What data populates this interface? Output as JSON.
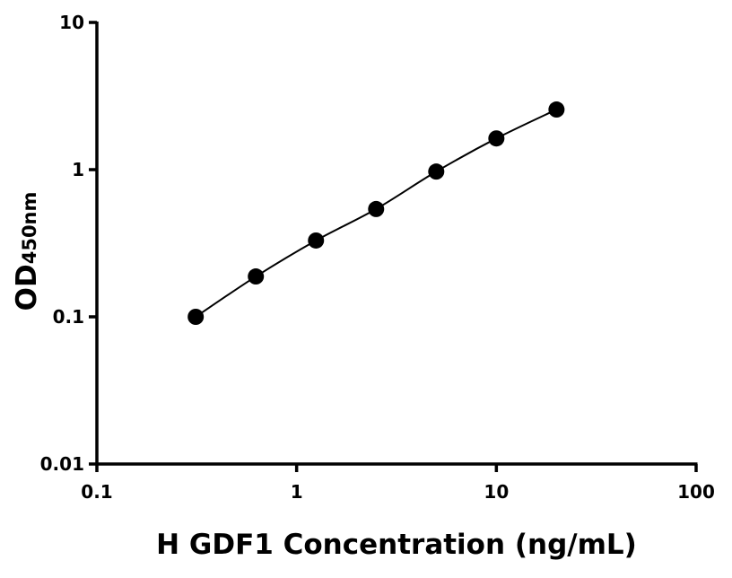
{
  "chart_data": {
    "type": "scatter",
    "title": "",
    "xlabel": "H GDF1 Concentration (ng/mL)",
    "ylabel_main": "OD",
    "ylabel_sub": "450nm",
    "x_scale": "log",
    "y_scale": "log",
    "xlim": [
      0.1,
      100
    ],
    "ylim": [
      0.01,
      10
    ],
    "x_ticks": [
      0.1,
      1,
      10,
      100
    ],
    "x_tick_labels": [
      "0.1",
      "1",
      "10",
      "100"
    ],
    "y_ticks": [
      0.01,
      0.1,
      1,
      10
    ],
    "y_tick_labels": [
      "0.01",
      "0.1",
      "1",
      "10"
    ],
    "grid": false,
    "fit_line": true,
    "marker_color": "#000000",
    "line_color": "#000000",
    "x": [
      0.3125,
      0.625,
      1.25,
      2.5,
      5,
      10,
      20
    ],
    "y": [
      0.1,
      0.188,
      0.33,
      0.54,
      0.97,
      1.63,
      2.56
    ]
  }
}
